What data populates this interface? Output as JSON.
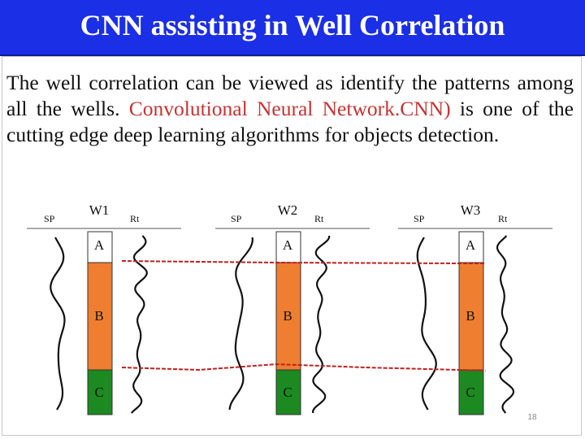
{
  "slide": {
    "title": "CNN assisting in Well Correlation",
    "body_part1": "The well correlation can be viewed as identify the patterns among all the wells. ",
    "body_highlight": "Convolutional Neural Network.CNN)",
    "body_part2": " is one of the cutting edge deep learning algorithms for objects detection.",
    "page_number": "18"
  },
  "wells": [
    {
      "name": "W1",
      "sp_label": "SP",
      "rt_label": "Rt",
      "zones": [
        "A",
        "B",
        "C"
      ]
    },
    {
      "name": "W2",
      "sp_label": "SP",
      "rt_label": "Rt",
      "zones": [
        "A",
        "B",
        "C"
      ]
    },
    {
      "name": "W3",
      "sp_label": "SP",
      "rt_label": "Rt",
      "zones": [
        "A",
        "B",
        "C"
      ]
    }
  ],
  "colors": {
    "title_bar": "#1a2fe6",
    "zone_orange": "#ef7e30",
    "zone_green": "#1d8a21",
    "correlation_line": "#c0201e",
    "highlight_text": "#c83232"
  }
}
